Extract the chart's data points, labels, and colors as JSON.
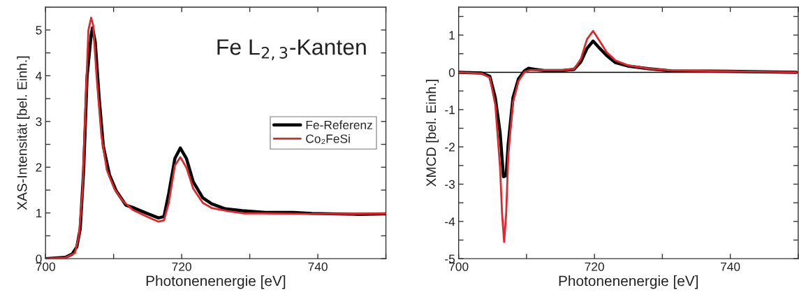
{
  "chart_data": [
    {
      "type": "line",
      "xlabel": "Photonenenergie [eV]",
      "ylabel": "XAS-Intensität [bel. Einh.]",
      "annotations": [
        "Fe L$_{2,3}$-Kanten"
      ],
      "xlim": [
        700,
        750
      ],
      "ylim": [
        0,
        5.5
      ],
      "xticks": [
        700,
        {
          "value": 710,
          "label": null
        },
        720,
        {
          "value": 730,
          "label": null
        },
        740,
        {
          "value": 750,
          "label": null
        }
      ],
      "yticks": [
        0,
        {
          "value": 0.5,
          "label": null
        },
        1,
        {
          "value": 1.5,
          "label": null
        },
        2,
        {
          "value": 2.5,
          "label": null
        },
        3,
        {
          "value": 3.5,
          "label": null
        },
        4,
        {
          "value": 4.5,
          "label": null
        },
        5
      ],
      "legend": "right",
      "line_style": "solid",
      "marker": "none",
      "series": [
        {
          "name": "Fe-Referenz",
          "color": "#000000",
          "x": [
            700,
            702.9,
            703.9,
            704.6,
            705.1,
            705.6,
            706.1,
            706.7,
            706.9,
            707.3,
            707.9,
            708.5,
            709.4,
            710.4,
            711.8,
            712.8,
            714.9,
            716.6,
            717.4,
            718.1,
            719.0,
            719.8,
            720.7,
            721.7,
            723.1,
            724.4,
            726.4,
            728.9,
            732.3,
            736.4,
            739.1,
            745.9,
            750
          ],
          "values": [
            0,
            0.03,
            0.1,
            0.26,
            0.66,
            1.94,
            3.98,
            4.89,
            5.05,
            4.74,
            3.47,
            2.45,
            1.83,
            1.48,
            1.17,
            1.12,
            0.99,
            0.89,
            0.92,
            1.43,
            2.19,
            2.42,
            2.19,
            1.68,
            1.33,
            1.2,
            1.09,
            1.05,
            1.01,
            1.01,
            0.99,
            0.97,
            0.98
          ]
        },
        {
          "name": "Co₂FeSi",
          "color": "#e3262b",
          "x": [
            700,
            702.9,
            704.3,
            704.9,
            705.4,
            705.9,
            706.3,
            706.7,
            707.0,
            707.5,
            708.2,
            709.0,
            710.1,
            711.3,
            712.8,
            714.9,
            716.6,
            717.4,
            718.1,
            719.0,
            719.8,
            720.7,
            721.7,
            723.1,
            724.4,
            726.8,
            729.2,
            732.3,
            739.1,
            750
          ],
          "values": [
            0,
            0.02,
            0.12,
            0.5,
            1.42,
            3.47,
            5.0,
            5.27,
            5.1,
            3.98,
            2.7,
            1.94,
            1.53,
            1.27,
            1.07,
            0.92,
            0.81,
            0.84,
            1.22,
            2.04,
            2.22,
            1.99,
            1.53,
            1.22,
            1.11,
            1.04,
            0.99,
            0.99,
            0.98,
            0.99
          ]
        }
      ]
    },
    {
      "type": "line",
      "xlabel": "Photonenenergie [eV]",
      "ylabel": "XMCD [bel. Einh.]",
      "xlim": [
        700,
        750
      ],
      "ylim": [
        -5,
        1.75
      ],
      "xticks": [
        700,
        {
          "value": 710,
          "label": null
        },
        720,
        {
          "value": 730,
          "label": null
        },
        740,
        {
          "value": 750,
          "label": null
        }
      ],
      "yticks": [
        -5,
        {
          "value": -4.5,
          "label": null
        },
        -4,
        {
          "value": -3.5,
          "label": null
        },
        -3,
        {
          "value": -2.5,
          "label": null
        },
        -2,
        {
          "value": -1.5,
          "label": null
        },
        -1,
        {
          "value": -0.5,
          "label": null
        },
        0,
        {
          "value": 0.5,
          "label": null
        },
        1,
        {
          "value": 1.5,
          "label": null
        }
      ],
      "ref_lines": [
        {
          "axis": "y",
          "value": 0,
          "color": "#000000",
          "line_style": "solid"
        }
      ],
      "line_style": "solid",
      "marker": "none",
      "series": [
        {
          "color": "#000000",
          "x": [
            700,
            703.4,
            704.6,
            705.4,
            706.1,
            706.6,
            707.0,
            707.3,
            708.0,
            708.8,
            709.7,
            710.3,
            711.2,
            712.6,
            715.3,
            717.0,
            718.0,
            718.9,
            719.8,
            720.8,
            721.8,
            723.1,
            724.9,
            727.9,
            731.3,
            739.9,
            749.7
          ],
          "values": [
            0,
            -0.02,
            -0.11,
            -0.68,
            -1.61,
            -2.8,
            -2.77,
            -1.93,
            -0.68,
            -0.18,
            0.04,
            0.11,
            0.08,
            0.05,
            0.05,
            0.08,
            0.28,
            0.64,
            0.84,
            0.64,
            0.45,
            0.26,
            0.17,
            0.1,
            0.04,
            0.03,
            0
          ]
        },
        {
          "color": "#e3262b",
          "x": [
            700,
            703.4,
            704.6,
            705.4,
            706.1,
            706.4,
            706.7,
            707.0,
            707.3,
            708.0,
            708.8,
            709.7,
            710.5,
            712.6,
            715.3,
            717.0,
            718.0,
            718.9,
            719.8,
            720.8,
            721.8,
            723.1,
            724.9,
            727.9,
            731.3,
            739.9,
            749.7
          ],
          "values": [
            0,
            -0.03,
            -0.14,
            -0.87,
            -2.55,
            -3.8,
            -4.55,
            -3.8,
            -2.24,
            -0.81,
            -0.24,
            0.01,
            0.06,
            0.06,
            0.06,
            0.09,
            0.36,
            0.89,
            1.11,
            0.83,
            0.54,
            0.32,
            0.19,
            0.1,
            0.05,
            0.03,
            0
          ]
        }
      ]
    }
  ]
}
